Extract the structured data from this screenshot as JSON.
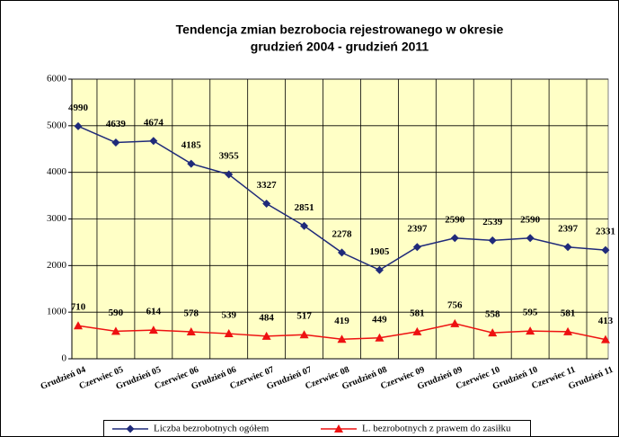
{
  "chart_data": {
    "type": "line",
    "title": [
      "Tendencja zmian bezrobocia rejestrowanego w okresie",
      "grudzień 2004 - grudzień 2011"
    ],
    "categories": [
      "Grudzień 04",
      "Czerwiec 05",
      "Grudzień 05",
      "Czerwiec 06",
      "Grudzień 06",
      "Czerwiec 07",
      "Grudzień 07",
      "Czerwiec 08",
      "Grudzień 08",
      "Czerwiec 09",
      "Grudzień 09",
      "Czerwiec 10",
      "Grudzień 10",
      "Czerwiec 11",
      "Grudzień 11"
    ],
    "series": [
      {
        "name": "Liczba bezrobotnych ogółem",
        "color": "#1f2a7a",
        "marker": "diamond",
        "values": [
          4990,
          4639,
          4674,
          4185,
          3955,
          3327,
          2851,
          2278,
          1905,
          2397,
          2590,
          2539,
          2590,
          2397,
          2331
        ]
      },
      {
        "name": "L. bezrobotnych z prawem do zasiłku",
        "color": "#ee1111",
        "marker": "triangle",
        "values": [
          710,
          590,
          614,
          578,
          539,
          484,
          517,
          419,
          449,
          581,
          756,
          558,
          595,
          581,
          413
        ]
      }
    ],
    "ylim": [
      0,
      6000
    ],
    "yticks": [
      0,
      1000,
      2000,
      3000,
      4000,
      5000,
      6000
    ],
    "grid": true,
    "plot_background": "#ffffc6",
    "legend": "bottom"
  }
}
